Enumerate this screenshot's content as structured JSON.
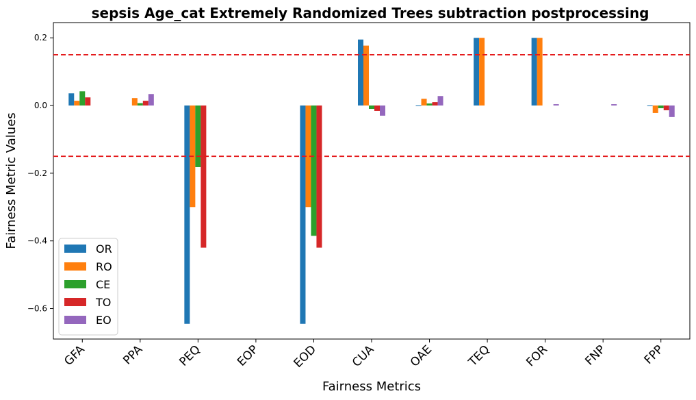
{
  "chart_data": {
    "type": "bar",
    "title": "sepsis Age_cat Extremely Randomized Trees subtraction postprocessing",
    "xlabel": "Fairness Metrics",
    "ylabel": "Fairness Metric Values",
    "categories": [
      "GFA",
      "PPA",
      "PEQ",
      "EOP",
      "EOD",
      "CUA",
      "OAE",
      "TEQ",
      "FOR",
      "FNP",
      "FPP"
    ],
    "ylim": [
      -0.69,
      0.245
    ],
    "yticks": [
      -0.6,
      -0.4,
      -0.2,
      0.0,
      0.2
    ],
    "ytick_labels": [
      "−0.6",
      "−0.4",
      "−0.2",
      "0.0",
      "0.2"
    ],
    "thresholds": [
      0.15,
      -0.15
    ],
    "threshold_color": "#e41a1c",
    "legend_position": "lower-left",
    "grid": false,
    "series": [
      {
        "name": "OR",
        "color": "#1f77b4",
        "values": [
          0.036,
          0.0,
          -0.645,
          0.0,
          -0.645,
          0.195,
          -0.002,
          0.2,
          0.2,
          0.0,
          -0.002
        ]
      },
      {
        "name": "RO",
        "color": "#ff7f0e",
        "values": [
          0.014,
          0.022,
          -0.3,
          0.0,
          -0.3,
          0.177,
          0.02,
          0.2,
          0.2,
          0.0,
          -0.022
        ]
      },
      {
        "name": "CE",
        "color": "#2ca02c",
        "values": [
          0.042,
          0.007,
          -0.182,
          0.0,
          -0.385,
          -0.01,
          0.006,
          0.0,
          0.0,
          0.0,
          -0.008
        ]
      },
      {
        "name": "TO",
        "color": "#d62728",
        "values": [
          0.024,
          0.014,
          -0.42,
          0.0,
          -0.42,
          -0.016,
          0.01,
          0.0,
          0.0,
          0.0,
          -0.014
        ]
      },
      {
        "name": "EO",
        "color": "#9467bd",
        "values": [
          0.0,
          0.034,
          0.0,
          0.0,
          0.0,
          -0.03,
          0.028,
          0.0,
          0.004,
          0.004,
          -0.034
        ]
      }
    ]
  }
}
